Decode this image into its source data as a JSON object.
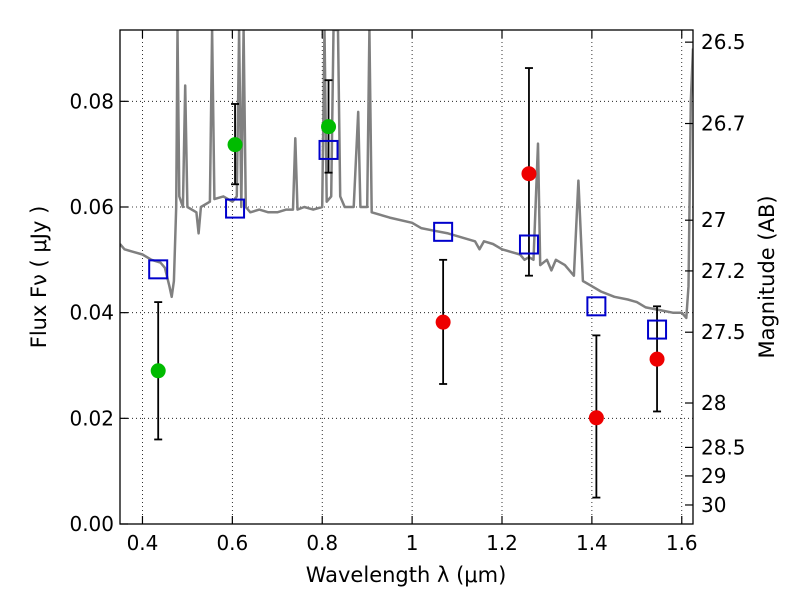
{
  "chart_data": {
    "type": "scatter",
    "xlabel": "Wavelength  λ (μm)",
    "ylabel": "Flux  Fν  ( μJy )",
    "y2label": "Magnitude (AB)",
    "xlim": [
      0.35,
      1.625
    ],
    "ylim": [
      0.0,
      0.0935
    ],
    "x_ticks": [
      0.4,
      0.6,
      0.8,
      1.0,
      1.2,
      1.4,
      1.6
    ],
    "x_tick_labels": [
      "0.4",
      "0.6",
      "0.8",
      "1",
      "1.2",
      "1.4",
      "1.6"
    ],
    "y_ticks": [
      0.0,
      0.02,
      0.04,
      0.06,
      0.08
    ],
    "y_tick_labels": [
      "0.00",
      "0.02",
      "0.04",
      "0.06",
      "0.08"
    ],
    "y2_ticks": [
      {
        "label": "26.5",
        "flux": 0.0912
      },
      {
        "label": "26.7",
        "flux": 0.0758
      },
      {
        "label": "27",
        "flux": 0.0575
      },
      {
        "label": "27.2",
        "flux": 0.0479
      },
      {
        "label": "27.5",
        "flux": 0.0363
      },
      {
        "label": "28",
        "flux": 0.0229
      },
      {
        "label": "28.5",
        "flux": 0.0145
      },
      {
        "label": "29",
        "flux": 0.0091
      },
      {
        "label": "30",
        "flux": 0.0036
      }
    ],
    "grid": true,
    "series": [
      {
        "marker": "circle-filled",
        "color": "#00bb00",
        "points": [
          {
            "x": 0.435,
            "y": 0.029,
            "err_low": 0.016,
            "err_high": 0.042
          },
          {
            "x": 0.606,
            "y": 0.0718,
            "err_low": 0.0643,
            "err_high": 0.0795
          },
          {
            "x": 0.814,
            "y": 0.0752,
            "err_low": 0.0665,
            "err_high": 0.084
          }
        ]
      },
      {
        "marker": "circle-filled",
        "color": "#ee0000",
        "points": [
          {
            "x": 1.069,
            "y": 0.0382,
            "err_low": 0.0265,
            "err_high": 0.05
          },
          {
            "x": 1.26,
            "y": 0.0663,
            "err_low": 0.047,
            "err_high": 0.0863
          },
          {
            "x": 1.41,
            "y": 0.0201,
            "err_low": 0.005,
            "err_high": 0.0357
          },
          {
            "x": 1.545,
            "y": 0.0312,
            "err_low": 0.0213,
            "err_high": 0.0412
          }
        ]
      },
      {
        "marker": "square-open",
        "color": "#0000cc",
        "points": [
          {
            "x": 0.435,
            "y": 0.0482
          },
          {
            "x": 0.606,
            "y": 0.0597
          },
          {
            "x": 0.814,
            "y": 0.0708
          },
          {
            "x": 1.069,
            "y": 0.0553
          },
          {
            "x": 1.26,
            "y": 0.0529
          },
          {
            "x": 1.41,
            "y": 0.0412
          },
          {
            "x": 1.545,
            "y": 0.0368
          }
        ]
      },
      {
        "marker": "line",
        "color": "#808080",
        "points": [
          [
            0.35,
            0.053
          ],
          [
            0.36,
            0.052
          ],
          [
            0.38,
            0.0515
          ],
          [
            0.4,
            0.051
          ],
          [
            0.42,
            0.05
          ],
          [
            0.44,
            0.0495
          ],
          [
            0.45,
            0.0485
          ],
          [
            0.46,
            0.045
          ],
          [
            0.465,
            0.043
          ],
          [
            0.47,
            0.046
          ],
          [
            0.475,
            0.06
          ],
          [
            0.478,
            0.0935
          ],
          [
            0.482,
            0.062
          ],
          [
            0.49,
            0.06
          ],
          [
            0.495,
            0.083
          ],
          [
            0.5,
            0.06
          ],
          [
            0.52,
            0.059
          ],
          [
            0.525,
            0.055
          ],
          [
            0.53,
            0.06
          ],
          [
            0.55,
            0.061
          ],
          [
            0.555,
            0.0935
          ],
          [
            0.56,
            0.0615
          ],
          [
            0.58,
            0.062
          ],
          [
            0.59,
            0.0615
          ],
          [
            0.6,
            0.061
          ],
          [
            0.61,
            0.062
          ],
          [
            0.615,
            0.0935
          ],
          [
            0.62,
            0.06
          ],
          [
            0.625,
            0.0935
          ],
          [
            0.63,
            0.06
          ],
          [
            0.64,
            0.059
          ],
          [
            0.66,
            0.0595
          ],
          [
            0.68,
            0.059
          ],
          [
            0.7,
            0.059
          ],
          [
            0.72,
            0.0595
          ],
          [
            0.735,
            0.0595
          ],
          [
            0.74,
            0.073
          ],
          [
            0.745,
            0.0595
          ],
          [
            0.76,
            0.06
          ],
          [
            0.78,
            0.0595
          ],
          [
            0.8,
            0.06
          ],
          [
            0.805,
            0.0935
          ],
          [
            0.81,
            0.061
          ],
          [
            0.82,
            0.062
          ],
          [
            0.825,
            0.0935
          ],
          [
            0.835,
            0.0935
          ],
          [
            0.84,
            0.062
          ],
          [
            0.85,
            0.06
          ],
          [
            0.87,
            0.06
          ],
          [
            0.88,
            0.078
          ],
          [
            0.885,
            0.06
          ],
          [
            0.9,
            0.06
          ],
          [
            0.905,
            0.0935
          ],
          [
            0.91,
            0.059
          ],
          [
            0.95,
            0.058
          ],
          [
            1.0,
            0.057
          ],
          [
            1.02,
            0.056
          ],
          [
            1.05,
            0.0555
          ],
          [
            1.08,
            0.055
          ],
          [
            1.1,
            0.0545
          ],
          [
            1.12,
            0.054
          ],
          [
            1.14,
            0.0535
          ],
          [
            1.15,
            0.052
          ],
          [
            1.16,
            0.0535
          ],
          [
            1.18,
            0.053
          ],
          [
            1.2,
            0.052
          ],
          [
            1.22,
            0.0515
          ],
          [
            1.24,
            0.051
          ],
          [
            1.25,
            0.05
          ],
          [
            1.26,
            0.0505
          ],
          [
            1.27,
            0.05
          ],
          [
            1.28,
            0.072
          ],
          [
            1.285,
            0.049
          ],
          [
            1.3,
            0.05
          ],
          [
            1.31,
            0.048
          ],
          [
            1.32,
            0.05
          ],
          [
            1.34,
            0.049
          ],
          [
            1.36,
            0.047
          ],
          [
            1.37,
            0.065
          ],
          [
            1.38,
            0.046
          ],
          [
            1.4,
            0.045
          ],
          [
            1.42,
            0.044
          ],
          [
            1.45,
            0.043
          ],
          [
            1.48,
            0.0425
          ],
          [
            1.5,
            0.042
          ],
          [
            1.52,
            0.041
          ],
          [
            1.55,
            0.0405
          ],
          [
            1.58,
            0.04
          ],
          [
            1.6,
            0.04
          ],
          [
            1.61,
            0.039
          ],
          [
            1.615,
            0.045
          ],
          [
            1.62,
            0.08
          ],
          [
            1.625,
            0.09
          ]
        ]
      }
    ]
  }
}
